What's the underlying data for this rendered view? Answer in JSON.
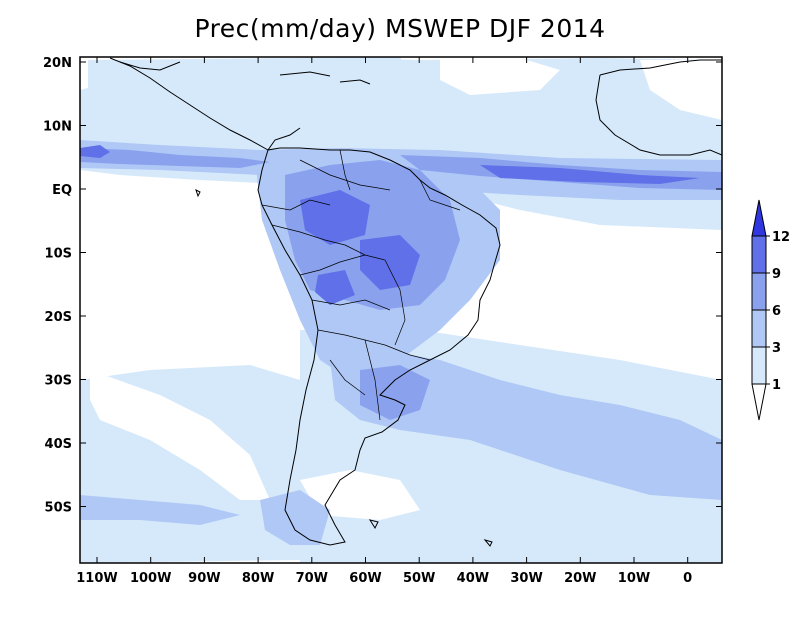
{
  "title": "Prec(mm/day) MSWEP DJF 2014",
  "lat_labels": [
    "20N",
    "10N",
    "EQ",
    "10S",
    "20S",
    "30S",
    "40S",
    "50S"
  ],
  "lon_labels": [
    "110W",
    "100W",
    "90W",
    "80W",
    "70W",
    "60W",
    "50W",
    "40W",
    "30W",
    "20W",
    "10W",
    "0"
  ],
  "colorbar": {
    "levels": [
      "1",
      "3",
      "6",
      "9",
      "12"
    ],
    "colors": [
      "#ffffff",
      "#d6e9fb",
      "#b0c8f5",
      "#8aa2ee",
      "#5f70e8",
      "#3036e0"
    ]
  },
  "colors": {
    "ocean": "#ffffff",
    "level_1_3": "#d6e9fb",
    "level_3_6": "#b0c8f5",
    "level_6_9": "#8aa2ee",
    "level_9_12": "#5f70e8",
    "coast": "#000000"
  }
}
